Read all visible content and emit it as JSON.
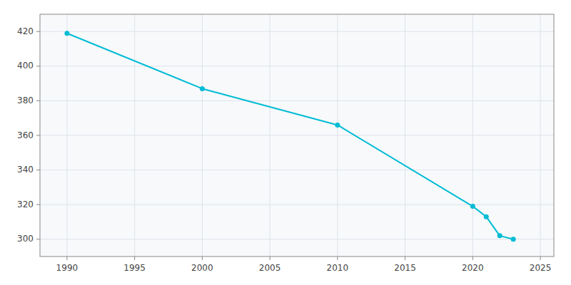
{
  "chart_data": {
    "type": "line",
    "x": [
      1990,
      2000,
      2010,
      2020,
      2021,
      2022,
      2023
    ],
    "values": [
      419,
      387,
      366,
      319,
      313,
      302,
      300
    ],
    "color": "#00BCD4",
    "marker": "circle",
    "xlim": [
      1988,
      2026
    ],
    "ylim": [
      290,
      430
    ],
    "xticks": [
      1990,
      1995,
      2000,
      2005,
      2010,
      2015,
      2020,
      2025
    ],
    "yticks": [
      300,
      320,
      340,
      360,
      380,
      400,
      420
    ],
    "grid": true
  }
}
